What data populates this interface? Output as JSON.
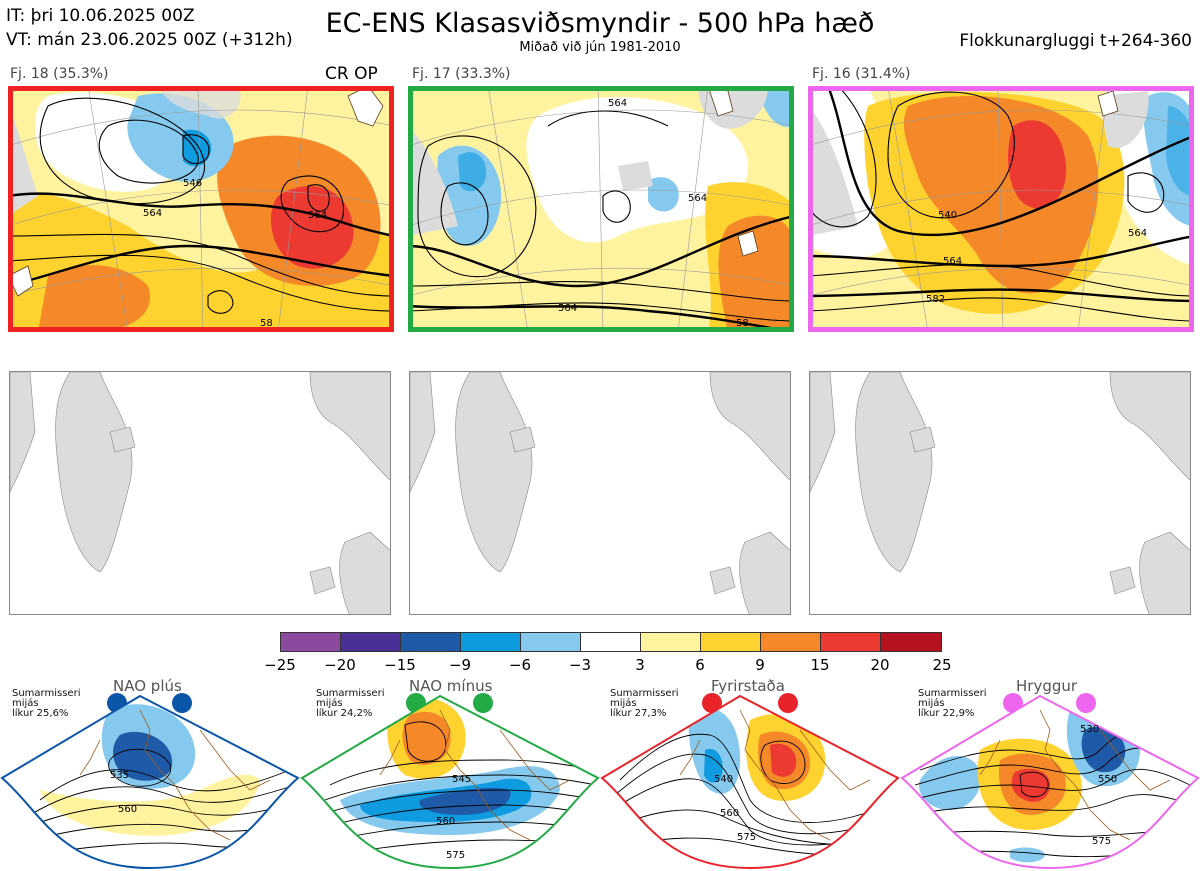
{
  "header": {
    "init_time": "IT: þri 10.06.2025 00Z",
    "valid_time": "VT: mán 23.06.2025 00Z  (+312h)",
    "title": "EC-ENS Klasasviðsmyndir - 500 hPa hæð",
    "subtitle": "Miðað við jún 1981-2010",
    "window": "Flokkunargluggi t+264-360"
  },
  "clusters": [
    {
      "label": "Fj. 18 (35.3%)",
      "badge": "CR OP",
      "frame_color": "#ee2222",
      "contour_labels": [
        "546",
        "564",
        "564",
        "58"
      ]
    },
    {
      "label": "Fj. 17 (33.3%)",
      "badge": "",
      "frame_color": "#22aa44",
      "contour_labels": [
        "564",
        "564",
        "564",
        "58"
      ]
    },
    {
      "label": "Fj. 16 (31.4%)",
      "badge": "",
      "frame_color": "#ee66ee",
      "contour_labels": [
        "540",
        "564",
        "582",
        "564"
      ]
    }
  ],
  "colorbar": {
    "ticks": [
      "−25",
      "−20",
      "−15",
      "−9",
      "−6",
      "−3",
      "3",
      "6",
      "9",
      "15",
      "20",
      "25"
    ],
    "colors": [
      "#8c4a9e",
      "#4a2f96",
      "#1e5aa8",
      "#0f9be0",
      "#86c9ee",
      "#ffffff",
      "#fff3a0",
      "#fed330",
      "#f5892a",
      "#ec3a33",
      "#b3121e"
    ]
  },
  "regimes": [
    {
      "title": "NAO plús",
      "season": "Sumarmisseri",
      "normal": "mijás",
      "likelihood": "líkur 25,6%",
      "color": "#0a55a8",
      "contour_labels": [
        "535",
        "560"
      ]
    },
    {
      "title": "NAO mínus",
      "season": "Sumarmisseri",
      "normal": "mijás",
      "likelihood": "líkur 24,2%",
      "color": "#22aa44",
      "contour_labels": [
        "545",
        "560",
        "575"
      ]
    },
    {
      "title": "Fyrirstaða",
      "season": "Sumarmisseri",
      "normal": "mijás",
      "likelihood": "líkur 27,3%",
      "color": "#e8232a",
      "contour_labels": [
        "540",
        "560",
        "575"
      ]
    },
    {
      "title": "Hryggur",
      "season": "Sumarmisseri",
      "normal": "mijás",
      "likelihood": "líkur 22,9%",
      "color": "#ee66ee",
      "contour_labels": [
        "530",
        "550",
        "575"
      ]
    }
  ]
}
